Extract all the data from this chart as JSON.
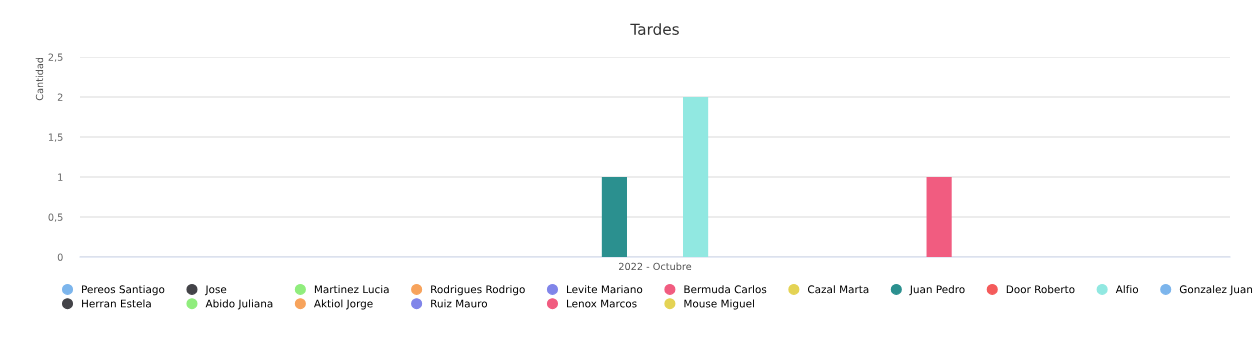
{
  "chart_data": {
    "type": "bar",
    "title": "Tardes",
    "ylabel": "Cantidad",
    "categories": [
      "2022 - Octubre"
    ],
    "series": [
      {
        "name": "Pereos Santiago",
        "color": "#7cb5ec",
        "values": [
          0
        ]
      },
      {
        "name": "Jose",
        "color": "#434348",
        "values": [
          0
        ]
      },
      {
        "name": "Martinez Lucia",
        "color": "#90ed7d",
        "values": [
          0
        ]
      },
      {
        "name": "Rodrigues Rodrigo",
        "color": "#f7a35c",
        "values": [
          0
        ]
      },
      {
        "name": "Levite Mariano",
        "color": "#8085e9",
        "values": [
          0
        ]
      },
      {
        "name": "Bermuda Carlos",
        "color": "#f15c80",
        "values": [
          0
        ]
      },
      {
        "name": "Cazal Marta",
        "color": "#e4d354",
        "values": [
          0
        ]
      },
      {
        "name": "Juan Pedro",
        "color": "#2b908f",
        "values": [
          1
        ]
      },
      {
        "name": "Door Roberto",
        "color": "#f45b5b",
        "values": [
          0
        ]
      },
      {
        "name": "Alfio",
        "color": "#91e8e1",
        "values": [
          2
        ]
      },
      {
        "name": "Gonzalez Juan",
        "color": "#7cb5ec",
        "values": [
          0
        ]
      },
      {
        "name": "Herran Estela",
        "color": "#434348",
        "values": [
          0
        ]
      },
      {
        "name": "Abido Juliana",
        "color": "#90ed7d",
        "values": [
          0
        ]
      },
      {
        "name": "Aktiol Jorge",
        "color": "#f7a35c",
        "values": [
          0
        ]
      },
      {
        "name": "Ruiz Mauro",
        "color": "#8085e9",
        "values": [
          0
        ]
      },
      {
        "name": "Lenox Marcos",
        "color": "#f15c80",
        "values": [
          1
        ]
      },
      {
        "name": "Mouse Miguel",
        "color": "#e4d354",
        "values": [
          0
        ]
      }
    ],
    "ylim": [
      0,
      2.5
    ],
    "yticks": [
      0,
      {
        "value": 0.5,
        "label": "0,5"
      },
      1,
      {
        "value": 1.5,
        "label": "1,5"
      },
      2,
      {
        "value": 2.5,
        "label": "2,5"
      }
    ],
    "grid": "y",
    "legend": "bottom"
  }
}
